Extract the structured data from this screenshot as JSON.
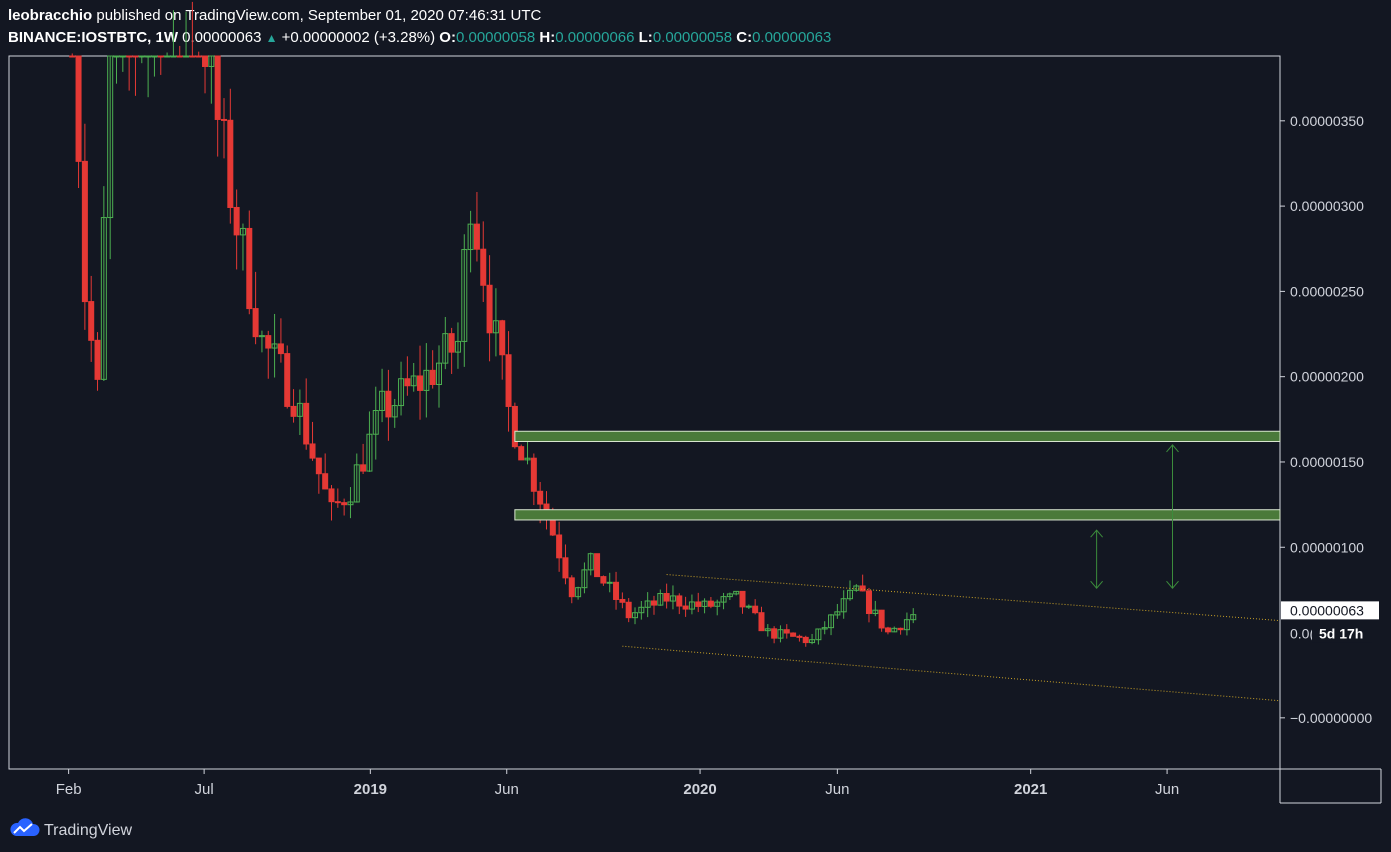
{
  "header": {
    "author": "leobracchio",
    "published_text": "published on TradingView.com, September 01, 2020 07:46:31 UTC",
    "symbol": "BINANCE:IOSTBTC, 1W",
    "last": "0.00000063",
    "change": "+0.00000002 (+3.28%)",
    "open_label": "O:",
    "open": "0.00000058",
    "high_label": "H:",
    "high": "0.00000066",
    "low_label": "L:",
    "low": "0.00000058",
    "close_label": "C:",
    "close": "0.00000063"
  },
  "footer": {
    "brand": "TradingView",
    "logo_icon": "tradingview-cloud-icon"
  },
  "colors": {
    "background": "#131722",
    "up": "#26a69a",
    "candle_up": "#4caf50",
    "candle_down": "#e53935",
    "zone_fill": "#4a7a3a",
    "channel": "#c9a227",
    "arrow": "#3c8c3c",
    "axis_text": "#d1d4dc"
  },
  "chart_data": {
    "type": "candlestick",
    "interval": "1W",
    "y_axis": {
      "ylim": [
        -3e-07,
        3.88e-06
      ],
      "ticks": [
        3.5e-06,
        3e-06,
        2.5e-06,
        2e-06,
        1.5e-06,
        1e-06,
        -0.0
      ],
      "tick_labels": [
        "0.00000350",
        "0.00000300",
        "0.00000250",
        "0.00000200",
        "0.00000150",
        "0.00000100",
        "−0.00000000"
      ],
      "last_price_label": "0.00000063",
      "last_price": 6.3e-07,
      "countdown_label": "5d 17h",
      "partial_label": "0.0("
    },
    "x_axis": {
      "range": [
        "2017-11-27",
        "2021-10-04"
      ],
      "ticks": [
        {
          "date": "2018-02-01",
          "label": "Feb",
          "bold": false
        },
        {
          "date": "2018-07-01",
          "label": "Jul",
          "bold": false
        },
        {
          "date": "2019-01-01",
          "label": "2019",
          "bold": true
        },
        {
          "date": "2019-06-01",
          "label": "Jun",
          "bold": false
        },
        {
          "date": "2020-01-01",
          "label": "2020",
          "bold": true
        },
        {
          "date": "2020-06-01",
          "label": "Jun",
          "bold": false
        },
        {
          "date": "2021-01-01",
          "label": "2021",
          "bold": true
        },
        {
          "date": "2021-06-01",
          "label": "Jun",
          "bold": false
        }
      ]
    },
    "anchors": [
      {
        "date": "2018-02-05",
        "close": 4.3e-06
      },
      {
        "date": "2018-02-19",
        "close": 2.5e-06
      },
      {
        "date": "2018-03-05",
        "close": 1.9e-06
      },
      {
        "date": "2018-03-19",
        "close": 3.8e-06
      },
      {
        "date": "2018-06-18",
        "close": 4.5e-06
      },
      {
        "date": "2018-07-09",
        "close": 3.7e-06
      },
      {
        "date": "2018-08-06",
        "close": 2.9e-06
      },
      {
        "date": "2018-09-03",
        "close": 2.2e-06
      },
      {
        "date": "2018-10-08",
        "close": 1.9e-06
      },
      {
        "date": "2018-11-19",
        "close": 1.2e-06
      },
      {
        "date": "2018-12-10",
        "close": 1.35e-06
      },
      {
        "date": "2019-01-14",
        "close": 1.8e-06
      },
      {
        "date": "2019-03-04",
        "close": 2e-06
      },
      {
        "date": "2019-04-08",
        "close": 2.2e-06
      },
      {
        "date": "2019-04-22",
        "close": 3.1e-06
      },
      {
        "date": "2019-05-13",
        "close": 2.4e-06
      },
      {
        "date": "2019-06-03",
        "close": 1.8e-06
      },
      {
        "date": "2019-07-15",
        "close": 1.2e-06
      },
      {
        "date": "2019-08-12",
        "close": 7.5e-07
      },
      {
        "date": "2019-09-02",
        "close": 9e-07
      },
      {
        "date": "2019-10-14",
        "close": 6e-07
      },
      {
        "date": "2019-11-25",
        "close": 7e-07
      },
      {
        "date": "2020-01-06",
        "close": 6.5e-07
      },
      {
        "date": "2020-02-10",
        "close": 7e-07
      },
      {
        "date": "2020-03-16",
        "close": 5e-07
      },
      {
        "date": "2020-05-04",
        "close": 4.5e-07
      },
      {
        "date": "2020-06-22",
        "close": 7.5e-07
      },
      {
        "date": "2020-07-27",
        "close": 5e-07
      },
      {
        "date": "2020-08-31",
        "close": 6.3e-07
      }
    ],
    "zones": [
      {
        "from": "2019-06-10",
        "price_low": 1.62e-06,
        "price_high": 1.68e-06
      },
      {
        "from": "2019-06-10",
        "price_low": 1.16e-06,
        "price_high": 1.22e-06
      }
    ],
    "channel": [
      {
        "x1": "2019-11-25",
        "y1": 8.4e-07,
        "x2": "2021-10-04",
        "y2": 5.7e-07
      },
      {
        "x1": "2019-10-07",
        "y1": 4.2e-07,
        "x2": "2021-10-04",
        "y2": 1e-07
      }
    ],
    "arrows": [
      {
        "date": "2021-03-15",
        "from": 1.1e-06,
        "to": 7.6e-07
      },
      {
        "date": "2021-06-07",
        "from": 1.6e-06,
        "to": 7.6e-07
      }
    ]
  }
}
